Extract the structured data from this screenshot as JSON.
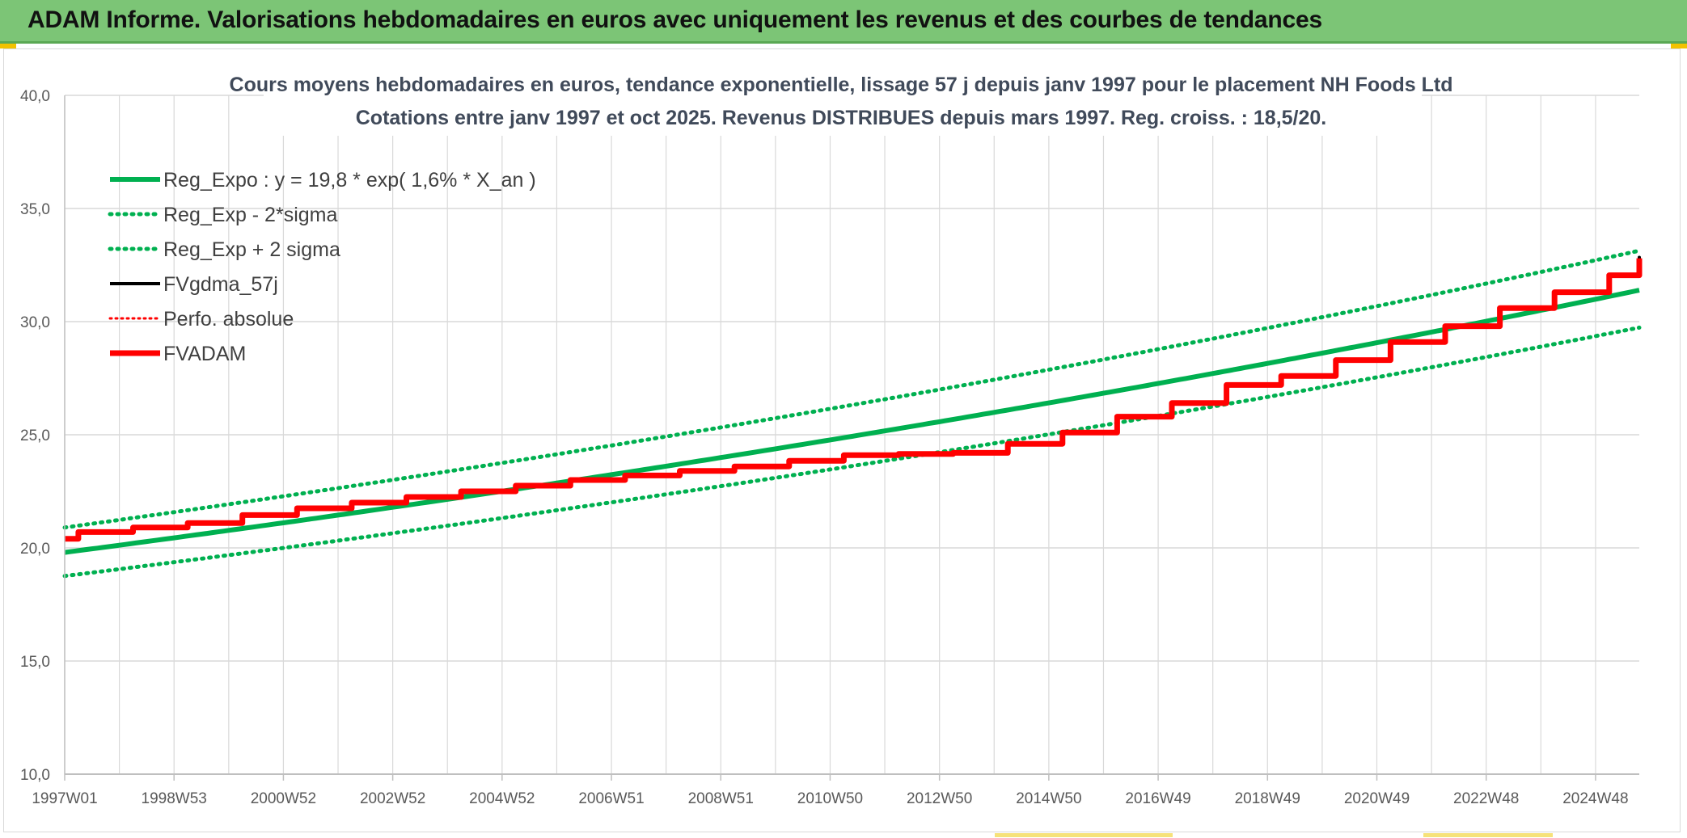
{
  "header": {
    "banner_title": "ADAM Informe. Valorisations hebdomadaires en euros avec uniquement les revenus et des courbes de tendances"
  },
  "colors": {
    "banner_bg": "#7cc576",
    "green": "#00b050",
    "red": "#ff0000",
    "black": "#000000",
    "grid": "#d9d9d9"
  },
  "chart_data": {
    "type": "line",
    "title_line1": "Cours moyens hebdomadaires en euros, tendance exponentielle, lissage 57 j depuis janv 1997 pour le placement NH Foods Ltd",
    "title_line2": "Cotations entre janv 1997 et oct 2025. Revenus DISTRIBUES depuis mars 1997. Reg. croiss. : 18,5/20.",
    "xlabel": "",
    "ylabel": "",
    "ylim": [
      10,
      40
    ],
    "xlim": [
      1997.0,
      2025.8
    ],
    "grid": true,
    "legend_position": "top-left",
    "y_ticks": [
      "10,0",
      "15,0",
      "20,0",
      "25,0",
      "30,0",
      "35,0",
      "40,0"
    ],
    "y_tick_values": [
      10,
      15,
      20,
      25,
      30,
      35,
      40
    ],
    "x_ticks": [
      "1997W01",
      "1998W53",
      "2000W52",
      "2002W52",
      "2004W52",
      "2006W51",
      "2008W51",
      "2010W50",
      "2012W50",
      "2014W50",
      "2016W49",
      "2018W49",
      "2020W49",
      "2022W48",
      "2024W48"
    ],
    "x_tick_values": [
      1997.0,
      1999.0,
      2001.0,
      2003.0,
      2005.0,
      2007.0,
      2009.0,
      2011.0,
      2013.0,
      2015.0,
      2017.0,
      2019.0,
      2021.0,
      2023.0,
      2025.0
    ],
    "regression": {
      "a": 19.8,
      "rate": 0.016,
      "sigma": 0.52
    },
    "series": [
      {
        "name": "Reg_Expo : y = 19,8 * exp( 1,6% *  X_an )",
        "style": "solid-green",
        "x": [
          1997.0,
          2001.0,
          2005.0,
          2009.0,
          2013.0,
          2017.0,
          2021.0,
          2025.8
        ],
        "values": [
          19.8,
          21.1,
          22.5,
          24.0,
          25.6,
          27.3,
          29.1,
          31.1
        ]
      },
      {
        "name": "Reg_Exp - 2*sigma",
        "style": "dotted-green",
        "x": [
          1997.0,
          2001.0,
          2005.0,
          2009.0,
          2013.0,
          2017.0,
          2021.0,
          2025.8
        ],
        "values": [
          18.8,
          20.0,
          21.3,
          22.7,
          24.2,
          25.8,
          27.5,
          29.5
        ]
      },
      {
        "name": "Reg_Exp + 2 sigma",
        "style": "dotted-green",
        "x": [
          1997.0,
          2001.0,
          2005.0,
          2009.0,
          2013.0,
          2017.0,
          2021.0,
          2025.8
        ],
        "values": [
          20.9,
          22.3,
          23.8,
          25.4,
          27.1,
          28.9,
          30.8,
          32.8
        ]
      },
      {
        "name": "FVgdma_57j",
        "style": "solid-black",
        "x": [
          1997.0,
          1997.25,
          1998.25,
          1999.25,
          2000.25,
          2001.25,
          2002.25,
          2003.25,
          2004.25,
          2005.25,
          2006.25,
          2007.25,
          2008.25,
          2009.25,
          2010.25,
          2011.25,
          2012.25,
          2013.25,
          2014.25,
          2015.25,
          2016.25,
          2017.25,
          2018.25,
          2019.25,
          2020.25,
          2021.25,
          2022.25,
          2023.25,
          2024.25,
          2025.25,
          2025.8
        ],
        "values": [
          20.4,
          20.7,
          20.9,
          21.1,
          21.45,
          21.75,
          22.0,
          22.25,
          22.5,
          22.75,
          23.0,
          23.2,
          23.4,
          23.6,
          23.85,
          24.1,
          24.15,
          24.2,
          24.6,
          25.1,
          25.8,
          26.4,
          27.2,
          27.6,
          28.3,
          29.1,
          29.8,
          30.6,
          31.3,
          32.05,
          32.8
        ]
      },
      {
        "name": "Perfo. absolue",
        "style": "dotted-red",
        "x": [
          1997.0,
          1997.25,
          1998.25,
          1999.25,
          2000.25,
          2001.25,
          2002.25,
          2003.25,
          2004.25,
          2005.25,
          2006.25,
          2007.25,
          2008.25,
          2009.25,
          2010.25,
          2011.25,
          2012.25,
          2013.25,
          2014.25,
          2015.25,
          2016.25,
          2017.25,
          2018.25,
          2019.25,
          2020.25,
          2021.25,
          2022.25,
          2023.25,
          2024.25,
          2025.25,
          2025.8
        ],
        "values": [
          20.4,
          20.7,
          20.9,
          21.1,
          21.45,
          21.75,
          22.0,
          22.25,
          22.5,
          22.75,
          23.0,
          23.2,
          23.4,
          23.6,
          23.85,
          24.1,
          24.15,
          24.2,
          24.6,
          25.1,
          25.8,
          26.4,
          27.2,
          27.6,
          28.3,
          29.1,
          29.8,
          30.6,
          31.3,
          32.05,
          32.8
        ]
      },
      {
        "name": "FVADAM",
        "style": "solid-red-step",
        "x": [
          1997.0,
          1997.25,
          1998.25,
          1999.25,
          2000.25,
          2001.25,
          2002.25,
          2003.25,
          2004.25,
          2005.25,
          2006.25,
          2007.25,
          2008.25,
          2009.25,
          2010.25,
          2011.25,
          2012.25,
          2013.25,
          2014.25,
          2015.25,
          2016.25,
          2017.25,
          2018.25,
          2019.25,
          2020.25,
          2021.25,
          2022.25,
          2023.25,
          2024.25,
          2025.25,
          2025.8
        ],
        "values": [
          20.4,
          20.7,
          20.9,
          21.1,
          21.45,
          21.75,
          22.0,
          22.25,
          22.5,
          22.75,
          23.0,
          23.2,
          23.4,
          23.6,
          23.85,
          24.1,
          24.15,
          24.2,
          24.6,
          25.1,
          25.8,
          26.4,
          27.2,
          27.6,
          28.3,
          29.1,
          29.8,
          30.6,
          31.3,
          32.05,
          32.8
        ]
      }
    ]
  }
}
